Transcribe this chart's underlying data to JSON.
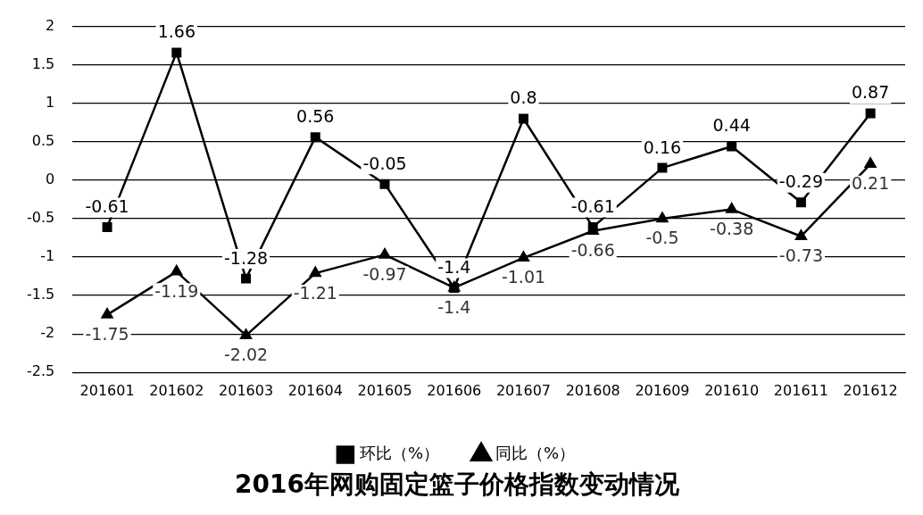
{
  "chart_data": {
    "type": "line",
    "title": "2016年网购固定篮子价格指数变动情况",
    "categories": [
      "201601",
      "201602",
      "201603",
      "201604",
      "201605",
      "201606",
      "201607",
      "201608",
      "201609",
      "201610",
      "201611",
      "201612"
    ],
    "series": [
      {
        "name": "环比（%）",
        "color": "#000000",
        "marker": "square",
        "values": [
          -0.61,
          1.66,
          -1.28,
          0.56,
          -0.05,
          -1.4,
          0.8,
          -0.61,
          0.16,
          0.44,
          -0.29,
          0.87
        ]
      },
      {
        "name": "同比（%）",
        "color": "#000000",
        "marker": "triangle",
        "values": [
          -1.75,
          -1.19,
          -2.02,
          -1.21,
          -0.97,
          -1.4,
          -1.01,
          -0.66,
          -0.5,
          -0.38,
          -0.73,
          0.21
        ]
      }
    ],
    "ylim": [
      -2.5,
      2
    ],
    "yticks": [
      -2.5,
      -2,
      -1.5,
      -1,
      -0.5,
      0,
      0.5,
      1,
      1.5,
      2
    ],
    "grid": "y",
    "legend": "bottom",
    "line_style": "solid",
    "data_labels": true
  }
}
